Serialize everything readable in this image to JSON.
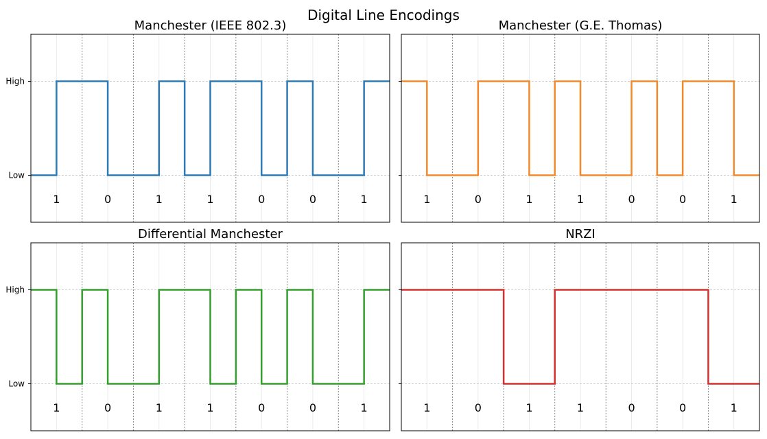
{
  "figure_title": "Digital Line Encodings",
  "colors": {
    "manchester_ieee": "#2c7bb6",
    "manchester_thomas": "#f28a2a",
    "differential": "#33a02c",
    "nrzi": "#d62f2f",
    "minor_grid": "#e6e6e6",
    "level_grid": "#bdbdbd",
    "bit_boundary": "#888888"
  },
  "chart_data": [
    {
      "type": "line",
      "step": "post",
      "title": "Manchester (IEEE 802.3)",
      "bits": [
        "1",
        "0",
        "1",
        "1",
        "0",
        "0",
        "1"
      ],
      "x": [
        0,
        0.5,
        1,
        1.5,
        2,
        2.5,
        3,
        3.5,
        4,
        4.5,
        5,
        5.5,
        6,
        6.5,
        7
      ],
      "y": [
        0,
        1,
        1,
        0,
        0,
        1,
        0,
        1,
        1,
        0,
        1,
        0,
        0,
        1,
        1
      ],
      "yticks": [
        "Low",
        "High"
      ],
      "xlim": [
        0,
        7
      ],
      "color_key": "manchester_ieee"
    },
    {
      "type": "line",
      "step": "post",
      "title": "Manchester (G.E. Thomas)",
      "bits": [
        "1",
        "0",
        "1",
        "1",
        "0",
        "0",
        "1"
      ],
      "x": [
        0,
        0.5,
        1,
        1.5,
        2,
        2.5,
        3,
        3.5,
        4,
        4.5,
        5,
        5.5,
        6,
        6.5,
        7
      ],
      "y": [
        1,
        0,
        0,
        1,
        1,
        0,
        1,
        0,
        0,
        1,
        0,
        1,
        1,
        0,
        0
      ],
      "yticks": [
        "Low",
        "High"
      ],
      "xlim": [
        0,
        7
      ],
      "color_key": "manchester_thomas"
    },
    {
      "type": "line",
      "step": "post",
      "title": "Differential Manchester",
      "bits": [
        "1",
        "0",
        "1",
        "1",
        "0",
        "0",
        "1"
      ],
      "x": [
        0,
        0.5,
        1,
        1.5,
        2,
        2.5,
        3,
        3.5,
        4,
        4.5,
        5,
        5.5,
        6,
        6.5,
        7
      ],
      "y": [
        1,
        0,
        1,
        0,
        0,
        1,
        1,
        0,
        1,
        0,
        1,
        0,
        0,
        1,
        1
      ],
      "yticks": [
        "Low",
        "High"
      ],
      "xlim": [
        0,
        7
      ],
      "color_key": "differential"
    },
    {
      "type": "line",
      "step": "post",
      "title": "NRZI",
      "bits": [
        "1",
        "0",
        "1",
        "1",
        "0",
        "0",
        "1"
      ],
      "x": [
        0,
        1,
        2,
        3,
        4,
        5,
        6,
        7
      ],
      "y": [
        1,
        1,
        0,
        1,
        1,
        1,
        0,
        0
      ],
      "yticks": [
        "Low",
        "High"
      ],
      "xlim": [
        0,
        7
      ],
      "color_key": "nrzi"
    }
  ]
}
